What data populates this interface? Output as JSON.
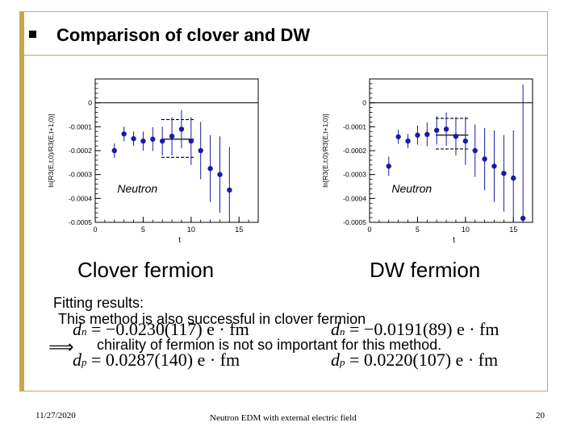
{
  "slide": {
    "title": "Comparison of clover and DW",
    "captions": [
      "Clover fermion",
      "DW fermion"
    ],
    "fitting_heading": "Fitting results:",
    "fitting_line1": "This method is also successful in clover fermion",
    "fitting_line2": "chirality of fermion is not so important for this method.",
    "formulas": {
      "clover_dn": "= −0.0230(117) e · fm",
      "clover_dp": "= 0.0287(140) e · fm",
      "dw_dn": "= −0.0191(89) e · fm",
      "dw_dp": "= 0.0220(107) e · fm",
      "d_label": "d",
      "n_sub": "n",
      "p_sub": "p"
    },
    "footer_date": "11/27/2020",
    "footer_center": "Neutron EDM with external electric field",
    "page_number": "20"
  },
  "chart_data": [
    {
      "type": "scatter",
      "title": "Clover fermion",
      "xlabel": "t",
      "ylabel": "ln[R3(E,t;0)/R3(E,t+1;0)]",
      "annotation": "Neutron",
      "xlim": [
        0,
        17
      ],
      "ylim": [
        -0.0005,
        0.0001
      ],
      "xticks": [
        "0",
        "5",
        "10",
        "15"
      ],
      "yticks": [
        "0",
        "-0.0001",
        "-0.0002",
        "-0.0003",
        "-0.0004",
        "-0.0005"
      ],
      "points": [
        {
          "t": 2,
          "y": -0.0002,
          "err": 3e-05
        },
        {
          "t": 3,
          "y": -0.00013,
          "err": 3e-05
        },
        {
          "t": 4,
          "y": -0.00015,
          "err": 3e-05
        },
        {
          "t": 5,
          "y": -0.00016,
          "err": 4e-05
        },
        {
          "t": 6,
          "y": -0.000152,
          "err": 5e-05
        },
        {
          "t": 7,
          "y": -0.00016,
          "err": 6e-05
        },
        {
          "t": 8,
          "y": -0.00014,
          "err": 8e-05
        },
        {
          "t": 9,
          "y": -0.00011,
          "err": 8e-05
        },
        {
          "t": 10,
          "y": -0.00016,
          "err": 0.0001
        },
        {
          "t": 11,
          "y": -0.0002,
          "err": 0.00012
        },
        {
          "t": 12,
          "y": -0.000275,
          "err": 0.00014
        },
        {
          "t": 13,
          "y": -0.0003,
          "err": 0.00016
        },
        {
          "t": 14,
          "y": -0.000365,
          "err": 0.00018
        }
      ],
      "fit": {
        "t_start": 7,
        "t_end": 10,
        "value": -0.000152,
        "err_low": -0.000228,
        "err_high": -7e-05
      }
    },
    {
      "type": "scatter",
      "title": "DW fermion",
      "xlabel": "t",
      "ylabel": "ln[R3(E,t;0)/R3(E,t+1;0)]",
      "annotation": "Neutron",
      "xlim": [
        0,
        17
      ],
      "ylim": [
        -0.0005,
        0.0001
      ],
      "xticks": [
        "0",
        "5",
        "10",
        "15"
      ],
      "yticks": [
        "0",
        "-0.0001",
        "-0.0002",
        "-0.0003",
        "-0.0004",
        "-0.0005"
      ],
      "points": [
        {
          "t": 2,
          "y": -0.000265,
          "err": 4e-05
        },
        {
          "t": 3,
          "y": -0.000142,
          "err": 3e-05
        },
        {
          "t": 4,
          "y": -0.00016,
          "err": 3e-05
        },
        {
          "t": 5,
          "y": -0.000135,
          "err": 4e-05
        },
        {
          "t": 6,
          "y": -0.000132,
          "err": 5e-05
        },
        {
          "t": 7,
          "y": -0.000115,
          "err": 6e-05
        },
        {
          "t": 8,
          "y": -0.00011,
          "err": 7e-05
        },
        {
          "t": 9,
          "y": -0.00014,
          "err": 8e-05
        },
        {
          "t": 10,
          "y": -0.00016,
          "err": 0.0001
        },
        {
          "t": 11,
          "y": -0.0002,
          "err": 0.00011
        },
        {
          "t": 12,
          "y": -0.000235,
          "err": 0.00013
        },
        {
          "t": 13,
          "y": -0.000265,
          "err": 0.00015
        },
        {
          "t": 14,
          "y": -0.000295,
          "err": 0.00016
        },
        {
          "t": 15,
          "y": -0.000315,
          "err": 0.0002
        },
        {
          "t": 16,
          "y": -0.000483,
          "err": 0.00056
        }
      ],
      "fit": {
        "t_start": 7,
        "t_end": 10,
        "value": -0.000135,
        "err_low": -0.000193,
        "err_high": -6.5e-05
      }
    }
  ]
}
